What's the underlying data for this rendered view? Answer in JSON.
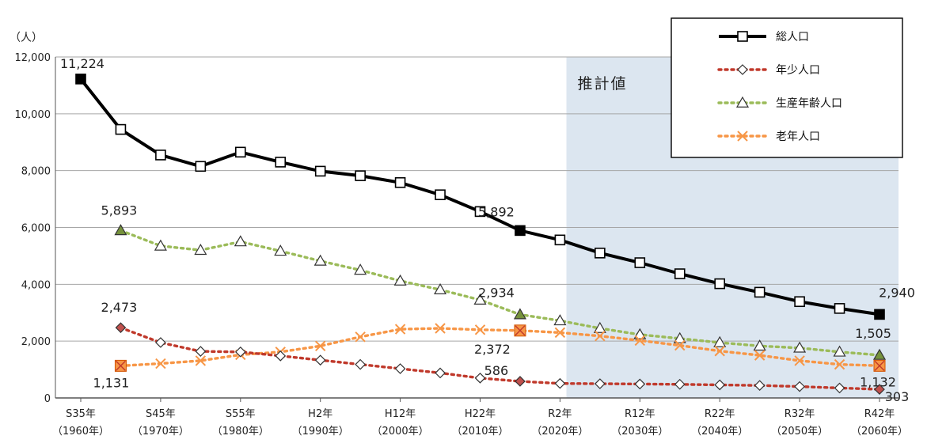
{
  "chart_data": {
    "type": "line",
    "y_unit": "（人）",
    "ylim": [
      0,
      12000
    ],
    "yticks": [
      0,
      2000,
      4000,
      6000,
      8000,
      10000,
      12000
    ],
    "ytick_labels": [
      "0",
      "2,000",
      "4,000",
      "6,000",
      "8,000",
      "10,000",
      "12,000"
    ],
    "years": [
      1960,
      1965,
      1970,
      1975,
      1980,
      1985,
      1990,
      1995,
      2000,
      2005,
      2010,
      2015,
      2020,
      2025,
      2030,
      2035,
      2040,
      2045,
      2050,
      2055,
      2060
    ],
    "x_ticks": [
      {
        "year": 1960,
        "line1": "S35年",
        "line2": "（1960年）"
      },
      {
        "year": 1970,
        "line1": "S45年",
        "line2": "（1970年）"
      },
      {
        "year": 1980,
        "line1": "S55年",
        "line2": "（1980年）"
      },
      {
        "year": 1990,
        "line1": "H2年",
        "line2": "（1990年）"
      },
      {
        "year": 2000,
        "line1": "H12年",
        "line2": "（2000年）"
      },
      {
        "year": 2010,
        "line1": "H22年",
        "line2": "（2010年）"
      },
      {
        "year": 2020,
        "line1": "R2年",
        "line2": "（2020年）"
      },
      {
        "year": 2030,
        "line1": "R12年",
        "line2": "（2030年）"
      },
      {
        "year": 2040,
        "line1": "R22年",
        "line2": "（2040年）"
      },
      {
        "year": 2050,
        "line1": "R32年",
        "line2": "（2050年）"
      },
      {
        "year": 2060,
        "line1": "R42年",
        "line2": "（2060年）"
      }
    ],
    "estimate_region": {
      "label": "推計値",
      "from_year": 2021,
      "to_year": 2060,
      "color": "#dce6f0"
    },
    "series": [
      {
        "name": "総人口",
        "key": "total",
        "color": "#000000",
        "style": "solid",
        "marker": "square",
        "start_year": 1960,
        "values": [
          11224,
          9450,
          8550,
          8150,
          8650,
          8300,
          7980,
          7820,
          7580,
          7150,
          6560,
          5892,
          5560,
          5100,
          4760,
          4370,
          4020,
          3720,
          3390,
          3150,
          2940
        ],
        "highlight_indices": [
          0,
          11,
          20
        ],
        "highlight_color": "#000000"
      },
      {
        "name": "年少人口",
        "key": "young",
        "color": "#c0392b",
        "style": "dotted",
        "marker": "diamond",
        "start_year": 1965,
        "values": [
          2473,
          1950,
          1640,
          1620,
          1480,
          1330,
          1180,
          1030,
          880,
          700,
          586,
          510,
          500,
          490,
          480,
          460,
          440,
          400,
          350,
          303
        ],
        "highlight_indices": [
          0,
          10,
          19
        ],
        "highlight_color": "#c0504d"
      },
      {
        "name": "生産年齢人口",
        "key": "working",
        "color": "#9bbb59",
        "style": "dotted",
        "marker": "triangle",
        "start_year": 1965,
        "values": [
          5893,
          5350,
          5200,
          5500,
          5170,
          4820,
          4500,
          4120,
          3810,
          3450,
          2934,
          2720,
          2450,
          2230,
          2090,
          1950,
          1830,
          1760,
          1620,
          1505
        ],
        "highlight_indices": [
          0,
          10,
          19
        ],
        "highlight_color": "#76923c"
      },
      {
        "name": "老年人口",
        "key": "elderly",
        "color": "#f79646",
        "style": "dotted",
        "marker": "x",
        "start_year": 1965,
        "values": [
          1131,
          1210,
          1310,
          1520,
          1620,
          1830,
          2150,
          2420,
          2450,
          2400,
          2372,
          2300,
          2180,
          2020,
          1850,
          1650,
          1500,
          1310,
          1180,
          1132
        ],
        "highlight_indices": [
          0,
          10,
          19
        ],
        "highlight_color": "#f79646"
      }
    ],
    "annotations": [
      {
        "text": "11,224",
        "series": "total",
        "index": 0
      },
      {
        "text": "5,892",
        "series": "total",
        "index": 11
      },
      {
        "text": "2,940",
        "series": "total",
        "index": 20
      },
      {
        "text": "5,893",
        "series": "working",
        "index": 0
      },
      {
        "text": "2,934",
        "series": "working",
        "index": 10
      },
      {
        "text": "1,505",
        "series": "working",
        "index": 19
      },
      {
        "text": "2,473",
        "series": "young",
        "index": 0
      },
      {
        "text": "586",
        "series": "young",
        "index": 10
      },
      {
        "text": "303",
        "series": "young",
        "index": 19
      },
      {
        "text": "1,131",
        "series": "elderly",
        "index": 0
      },
      {
        "text": "2,372",
        "series": "elderly",
        "index": 10
      },
      {
        "text": "1,132",
        "series": "elderly",
        "index": 19
      }
    ],
    "legend": {
      "placement": "top-right",
      "entries": [
        "総人口",
        "年少人口",
        "生産年齢人口",
        "老年人口"
      ]
    }
  }
}
